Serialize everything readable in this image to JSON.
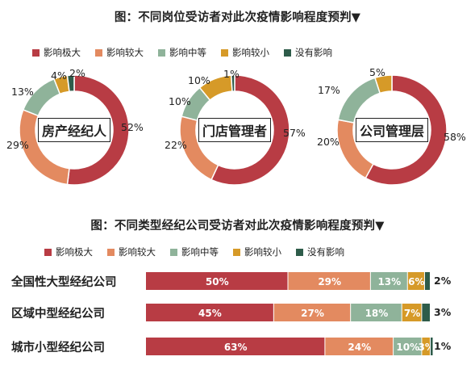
{
  "colors": [
    "#b83c44",
    "#e38a60",
    "#8fb39a",
    "#d69a28",
    "#2e5c4a"
  ],
  "donut_section": {
    "title": "图：不同岗位受访者对此次疫情影响程度预判▼",
    "legend": [
      "影响极大",
      "影响较大",
      "影响中等",
      "影响较小",
      "没有影响"
    ]
  },
  "bar_section": {
    "title": "图：不同类型经纪公司受访者对此次疫情影响程度预判▼",
    "legend": [
      "影响极大",
      "影响较大",
      "影响中等",
      "影响较小",
      "没有影响"
    ]
  },
  "chart_data": [
    {
      "type": "pie",
      "center_label": "房产经纪人",
      "categories": [
        "影响极大",
        "影响较大",
        "影响中等",
        "影响较小",
        "没有影响"
      ],
      "values": [
        52,
        29,
        13,
        4,
        2
      ],
      "labels": [
        "52%",
        "29%",
        "13%",
        "4%",
        "2%"
      ]
    },
    {
      "type": "pie",
      "center_label": "门店管理者",
      "categories": [
        "影响极大",
        "影响较大",
        "影响中等",
        "影响较小",
        "没有影响"
      ],
      "values": [
        57,
        22,
        10,
        10,
        1
      ],
      "labels": [
        "57%",
        "22%",
        "10%",
        "10%",
        "1%"
      ]
    },
    {
      "type": "pie",
      "center_label": "公司管理层",
      "categories": [
        "影响极大",
        "影响较大",
        "影响中等",
        "影响较小",
        "没有影响"
      ],
      "values": [
        58,
        20,
        17,
        5,
        0
      ],
      "labels": [
        "58%",
        "20%",
        "17%",
        "5%",
        ""
      ]
    },
    {
      "type": "bar",
      "stacked": true,
      "orientation": "horizontal",
      "categories": [
        "全国性大型经纪公司",
        "区域中型经纪公司",
        "城市小型经纪公司"
      ],
      "series": [
        {
          "name": "影响极大",
          "values": [
            50,
            45,
            63
          ],
          "labels": [
            "50%",
            "45%",
            "63%"
          ]
        },
        {
          "name": "影响较大",
          "values": [
            29,
            27,
            24
          ],
          "labels": [
            "29%",
            "27%",
            "24%"
          ]
        },
        {
          "name": "影响中等",
          "values": [
            13,
            18,
            10
          ],
          "labels": [
            "13%",
            "18%",
            "10%"
          ]
        },
        {
          "name": "影响较小",
          "values": [
            6,
            7,
            3
          ],
          "labels": [
            "6%",
            "7%",
            "3%"
          ]
        },
        {
          "name": "没有影响",
          "values": [
            2,
            3,
            1
          ],
          "labels": [
            "2%",
            "3%",
            "1%"
          ]
        }
      ]
    }
  ]
}
